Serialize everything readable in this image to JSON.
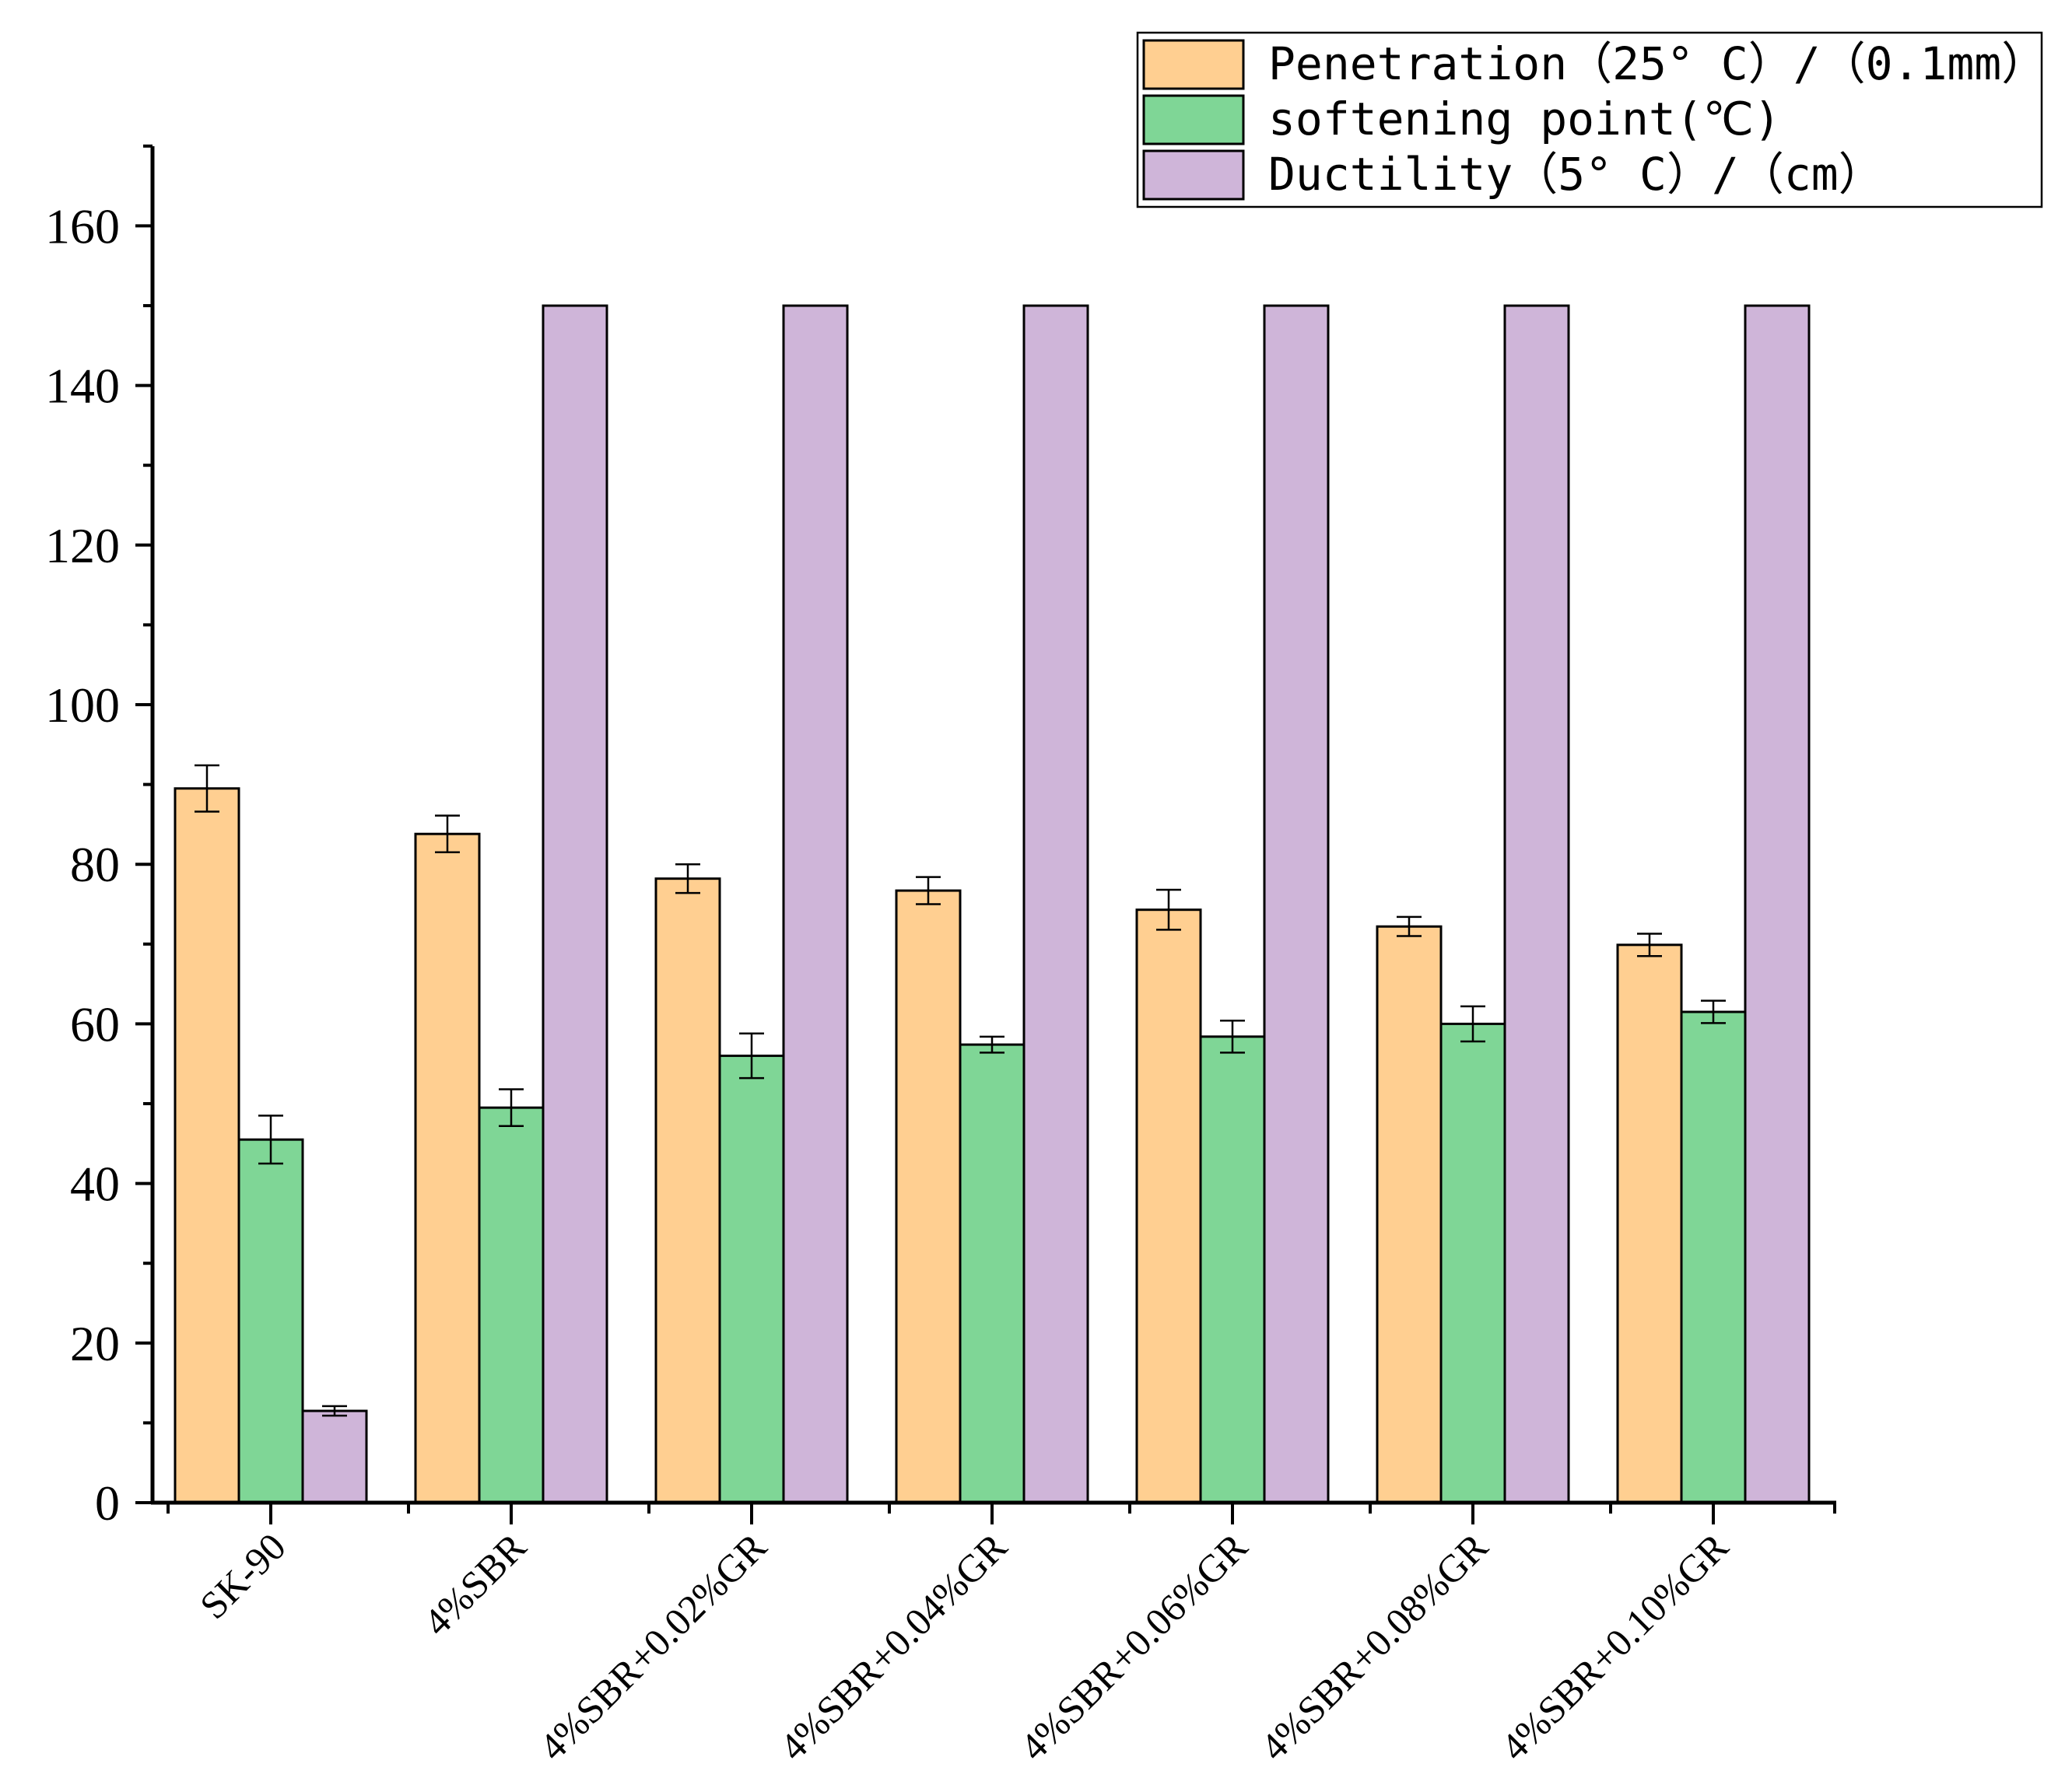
{
  "chart_data": {
    "type": "bar",
    "title": "",
    "xlabel": "",
    "ylabel": "",
    "ylim": [
      0,
      170
    ],
    "yticks": [
      0,
      20,
      40,
      60,
      80,
      100,
      120,
      140,
      160
    ],
    "legend_position": "top-right",
    "categories": [
      "SK-90",
      "4%SBR",
      "4%SBR+0.02%GR",
      "4%SBR+0.04%GR",
      "4%SBR+0.06%GR",
      "4%SBR+0.08%GR",
      "4%SBR+0.10%GR"
    ],
    "series": [
      {
        "name": "Penetration（25° C）/（0.1mm）",
        "color": "#FFCF91",
        "values": [
          89.5,
          83.8,
          78.2,
          76.7,
          74.3,
          72.2,
          69.9
        ],
        "errors": [
          2.9,
          2.3,
          1.8,
          1.7,
          2.5,
          1.2,
          1.4
        ]
      },
      {
        "name": "softening point(℃)",
        "color": "#7FD696",
        "values": [
          45.5,
          49.5,
          56.0,
          57.4,
          58.4,
          60.0,
          61.5
        ],
        "errors": [
          3.0,
          2.3,
          2.8,
          1.0,
          2.0,
          2.2,
          1.4
        ]
      },
      {
        "name": "Ductility（5° C）/（cm）",
        "color": "#CFB5D9",
        "values": [
          11.5,
          150,
          150,
          150,
          150,
          150,
          150
        ],
        "errors": [
          0.6,
          0,
          0,
          0,
          0,
          0,
          0
        ]
      }
    ]
  }
}
